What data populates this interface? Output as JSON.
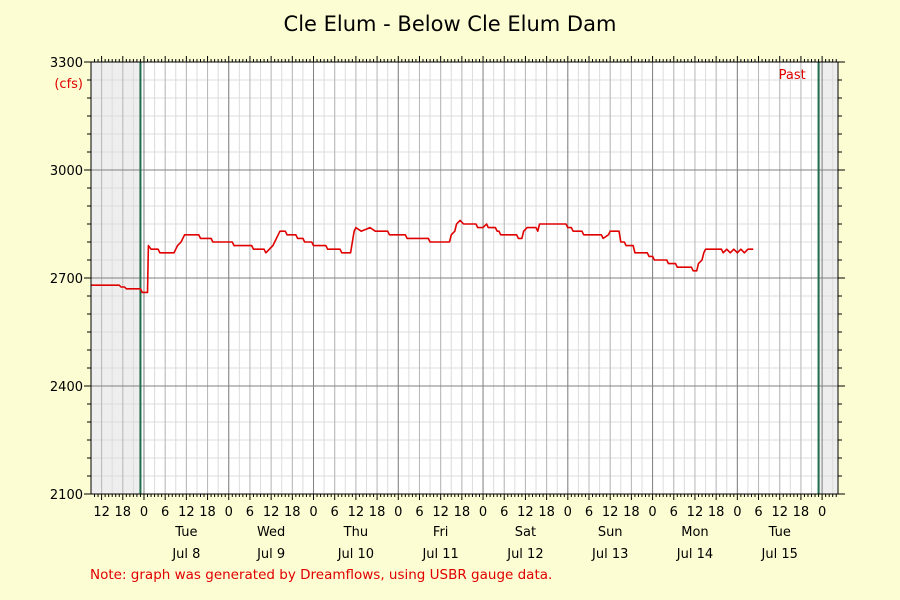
{
  "chart_data": {
    "type": "line",
    "title": "Cle Elum - Below Cle Elum Dam",
    "ylabel": "(cfs)",
    "ylim": [
      2100,
      3300
    ],
    "yticks": [
      2100,
      2400,
      2700,
      3000,
      3300
    ],
    "ytick_labels": [
      "2100",
      "2400",
      "2700",
      "3000",
      "3300"
    ],
    "xlim": [
      "2025-07-07 09:00",
      "2025-07-16 04:30"
    ],
    "x_ticks": [
      {
        "time": "2025-07-07 12:00",
        "label": "12"
      },
      {
        "time": "2025-07-07 18:00",
        "label": "18"
      },
      {
        "time": "2025-07-08 00:00",
        "label": "0"
      },
      {
        "time": "2025-07-08 06:00",
        "label": "6"
      },
      {
        "time": "2025-07-08 12:00",
        "label": "12"
      },
      {
        "time": "2025-07-08 18:00",
        "label": "18"
      },
      {
        "time": "2025-07-09 00:00",
        "label": "0"
      },
      {
        "time": "2025-07-09 06:00",
        "label": "6"
      },
      {
        "time": "2025-07-09 12:00",
        "label": "12"
      },
      {
        "time": "2025-07-09 18:00",
        "label": "18"
      },
      {
        "time": "2025-07-10 00:00",
        "label": "0"
      },
      {
        "time": "2025-07-10 06:00",
        "label": "6"
      },
      {
        "time": "2025-07-10 12:00",
        "label": "12"
      },
      {
        "time": "2025-07-10 18:00",
        "label": "18"
      },
      {
        "time": "2025-07-11 00:00",
        "label": "0"
      },
      {
        "time": "2025-07-11 06:00",
        "label": "6"
      },
      {
        "time": "2025-07-11 12:00",
        "label": "12"
      },
      {
        "time": "2025-07-11 18:00",
        "label": "18"
      },
      {
        "time": "2025-07-12 00:00",
        "label": "0"
      },
      {
        "time": "2025-07-12 06:00",
        "label": "6"
      },
      {
        "time": "2025-07-12 12:00",
        "label": "12"
      },
      {
        "time": "2025-07-12 18:00",
        "label": "18"
      },
      {
        "time": "2025-07-13 00:00",
        "label": "0"
      },
      {
        "time": "2025-07-13 06:00",
        "label": "6"
      },
      {
        "time": "2025-07-13 12:00",
        "label": "12"
      },
      {
        "time": "2025-07-13 18:00",
        "label": "18"
      },
      {
        "time": "2025-07-14 00:00",
        "label": "0"
      },
      {
        "time": "2025-07-14 06:00",
        "label": "6"
      },
      {
        "time": "2025-07-14 12:00",
        "label": "12"
      },
      {
        "time": "2025-07-14 18:00",
        "label": "18"
      },
      {
        "time": "2025-07-15 00:00",
        "label": "0"
      },
      {
        "time": "2025-07-15 06:00",
        "label": "6"
      },
      {
        "time": "2025-07-15 12:00",
        "label": "12"
      },
      {
        "time": "2025-07-15 18:00",
        "label": "18"
      },
      {
        "time": "2025-07-16 00:00",
        "label": "0"
      }
    ],
    "day_labels": [
      {
        "time": "2025-07-08 12:00",
        "weekday": "Tue",
        "date": "Jul 8"
      },
      {
        "time": "2025-07-09 12:00",
        "weekday": "Wed",
        "date": "Jul 9"
      },
      {
        "time": "2025-07-10 12:00",
        "weekday": "Thu",
        "date": "Jul 10"
      },
      {
        "time": "2025-07-11 12:00",
        "weekday": "Fri",
        "date": "Jul 11"
      },
      {
        "time": "2025-07-12 12:00",
        "weekday": "Sat",
        "date": "Jul 12"
      },
      {
        "time": "2025-07-13 12:00",
        "weekday": "Sun",
        "date": "Jul 13"
      },
      {
        "time": "2025-07-14 12:00",
        "weekday": "Mon",
        "date": "Jul 14"
      },
      {
        "time": "2025-07-15 12:00",
        "weekday": "Tue",
        "date": "Jul 15"
      }
    ],
    "past_marker": {
      "time": "2025-07-15 20:30",
      "label": "Past"
    },
    "shaded_regions": [
      [
        "2025-07-07 09:00",
        "2025-07-07 23:00"
      ],
      [
        "2025-07-15 23:00",
        "2025-07-16 04:30"
      ]
    ],
    "vertical_markers": [
      "2025-07-07 23:00",
      "2025-07-15 23:00"
    ],
    "grid": true,
    "series": [
      {
        "color": "#e00000",
        "points": [
          [
            "2025-07-07 09:00",
            2680
          ],
          [
            "2025-07-07 17:00",
            2680
          ],
          [
            "2025-07-07 17:30",
            2675
          ],
          [
            "2025-07-07 18:30",
            2675
          ],
          [
            "2025-07-07 19:00",
            2670
          ],
          [
            "2025-07-07 23:00",
            2670
          ],
          [
            "2025-07-07 23:30",
            2660
          ],
          [
            "2025-07-08 01:00",
            2660
          ],
          [
            "2025-07-08 01:15",
            2790
          ],
          [
            "2025-07-08 02:00",
            2780
          ],
          [
            "2025-07-08 04:00",
            2780
          ],
          [
            "2025-07-08 04:30",
            2770
          ],
          [
            "2025-07-08 08:30",
            2770
          ],
          [
            "2025-07-08 09:00",
            2780
          ],
          [
            "2025-07-08 09:30",
            2790
          ],
          [
            "2025-07-08 10:30",
            2800
          ],
          [
            "2025-07-08 11:00",
            2810
          ],
          [
            "2025-07-08 11:30",
            2820
          ],
          [
            "2025-07-08 15:30",
            2820
          ],
          [
            "2025-07-08 16:00",
            2810
          ],
          [
            "2025-07-08 19:00",
            2810
          ],
          [
            "2025-07-08 19:30",
            2800
          ],
          [
            "2025-07-09 01:00",
            2800
          ],
          [
            "2025-07-09 01:30",
            2790
          ],
          [
            "2025-07-09 06:30",
            2790
          ],
          [
            "2025-07-09 07:00",
            2780
          ],
          [
            "2025-07-09 10:00",
            2780
          ],
          [
            "2025-07-09 10:30",
            2770
          ],
          [
            "2025-07-09 11:30",
            2780
          ],
          [
            "2025-07-09 12:30",
            2790
          ],
          [
            "2025-07-09 13:00",
            2800
          ],
          [
            "2025-07-09 14:00",
            2820
          ],
          [
            "2025-07-09 14:30",
            2830
          ],
          [
            "2025-07-09 16:00",
            2830
          ],
          [
            "2025-07-09 16:30",
            2820
          ],
          [
            "2025-07-09 19:00",
            2820
          ],
          [
            "2025-07-09 19:30",
            2810
          ],
          [
            "2025-07-09 21:00",
            2810
          ],
          [
            "2025-07-09 21:30",
            2800
          ],
          [
            "2025-07-09 23:30",
            2800
          ],
          [
            "2025-07-10 00:00",
            2790
          ],
          [
            "2025-07-10 03:30",
            2790
          ],
          [
            "2025-07-10 04:00",
            2780
          ],
          [
            "2025-07-10 07:30",
            2780
          ],
          [
            "2025-07-10 08:00",
            2770
          ],
          [
            "2025-07-10 10:30",
            2770
          ],
          [
            "2025-07-10 11:00",
            2800
          ],
          [
            "2025-07-10 11:30",
            2830
          ],
          [
            "2025-07-10 12:00",
            2840
          ],
          [
            "2025-07-10 13:30",
            2830
          ],
          [
            "2025-07-10 16:00",
            2840
          ],
          [
            "2025-07-10 17:30",
            2830
          ],
          [
            "2025-07-10 21:00",
            2830
          ],
          [
            "2025-07-10 21:30",
            2820
          ],
          [
            "2025-07-11 02:00",
            2820
          ],
          [
            "2025-07-11 02:30",
            2810
          ],
          [
            "2025-07-11 08:30",
            2810
          ],
          [
            "2025-07-11 09:00",
            2800
          ],
          [
            "2025-07-11 14:30",
            2800
          ],
          [
            "2025-07-11 15:00",
            2820
          ],
          [
            "2025-07-11 16:00",
            2830
          ],
          [
            "2025-07-11 16:30",
            2850
          ],
          [
            "2025-07-11 17:30",
            2860
          ],
          [
            "2025-07-11 18:30",
            2850
          ],
          [
            "2025-07-11 22:00",
            2850
          ],
          [
            "2025-07-11 22:30",
            2840
          ],
          [
            "2025-07-12 00:00",
            2840
          ],
          [
            "2025-07-12 01:00",
            2850
          ],
          [
            "2025-07-12 01:30",
            2840
          ],
          [
            "2025-07-12 03:30",
            2840
          ],
          [
            "2025-07-12 04:00",
            2830
          ],
          [
            "2025-07-12 04:30",
            2830
          ],
          [
            "2025-07-12 05:00",
            2820
          ],
          [
            "2025-07-12 09:30",
            2820
          ],
          [
            "2025-07-12 10:00",
            2810
          ],
          [
            "2025-07-12 11:00",
            2810
          ],
          [
            "2025-07-12 11:30",
            2830
          ],
          [
            "2025-07-12 12:30",
            2840
          ],
          [
            "2025-07-12 15:00",
            2840
          ],
          [
            "2025-07-12 15:30",
            2830
          ],
          [
            "2025-07-12 16:00",
            2850
          ],
          [
            "2025-07-12 23:30",
            2850
          ],
          [
            "2025-07-13 00:00",
            2840
          ],
          [
            "2025-07-13 01:00",
            2840
          ],
          [
            "2025-07-13 01:30",
            2830
          ],
          [
            "2025-07-13 04:00",
            2830
          ],
          [
            "2025-07-13 04:30",
            2820
          ],
          [
            "2025-07-13 09:30",
            2820
          ],
          [
            "2025-07-13 10:00",
            2810
          ],
          [
            "2025-07-13 11:30",
            2820
          ],
          [
            "2025-07-13 12:00",
            2830
          ],
          [
            "2025-07-13 14:30",
            2830
          ],
          [
            "2025-07-13 15:00",
            2800
          ],
          [
            "2025-07-13 16:00",
            2800
          ],
          [
            "2025-07-13 16:30",
            2790
          ],
          [
            "2025-07-13 18:30",
            2790
          ],
          [
            "2025-07-13 19:00",
            2770
          ],
          [
            "2025-07-13 22:30",
            2770
          ],
          [
            "2025-07-13 23:00",
            2760
          ],
          [
            "2025-07-14 00:00",
            2760
          ],
          [
            "2025-07-14 00:30",
            2750
          ],
          [
            "2025-07-14 04:00",
            2750
          ],
          [
            "2025-07-14 04:30",
            2740
          ],
          [
            "2025-07-14 06:30",
            2740
          ],
          [
            "2025-07-14 07:00",
            2730
          ],
          [
            "2025-07-14 11:00",
            2730
          ],
          [
            "2025-07-14 11:30",
            2720
          ],
          [
            "2025-07-14 12:30",
            2720
          ],
          [
            "2025-07-14 13:00",
            2740
          ],
          [
            "2025-07-14 14:00",
            2750
          ],
          [
            "2025-07-14 14:30",
            2770
          ],
          [
            "2025-07-14 15:00",
            2780
          ],
          [
            "2025-07-14 19:30",
            2780
          ],
          [
            "2025-07-14 20:00",
            2770
          ],
          [
            "2025-07-14 21:00",
            2780
          ],
          [
            "2025-07-14 22:00",
            2770
          ],
          [
            "2025-07-14 23:00",
            2780
          ],
          [
            "2025-07-15 00:00",
            2770
          ],
          [
            "2025-07-15 01:00",
            2780
          ],
          [
            "2025-07-15 02:00",
            2770
          ],
          [
            "2025-07-15 03:00",
            2780
          ],
          [
            "2025-07-15 04:30",
            2780
          ]
        ]
      }
    ]
  },
  "note": "Note: graph was generated by Dreamflows, using USBR gauge data."
}
